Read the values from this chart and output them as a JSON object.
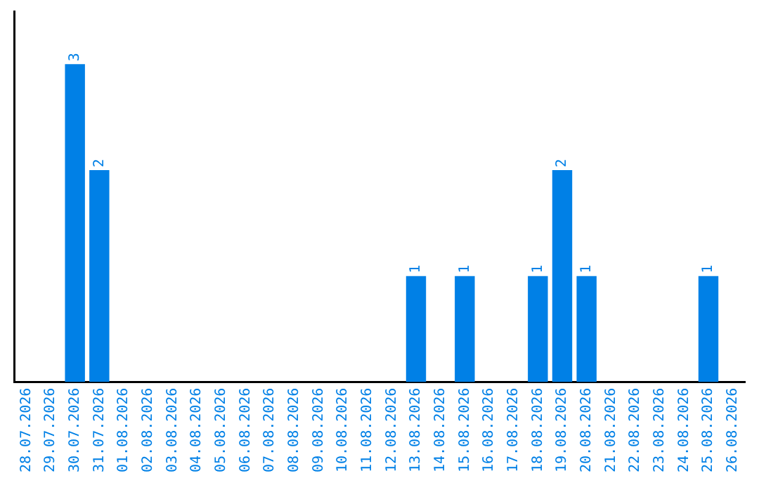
{
  "chart_data": {
    "type": "bar",
    "categories": [
      "28.07.2026",
      "29.07.2026",
      "30.07.2026",
      "31.07.2026",
      "01.08.2026",
      "02.08.2026",
      "03.08.2026",
      "04.08.2026",
      "05.08.2026",
      "06.08.2026",
      "07.08.2026",
      "08.08.2026",
      "09.08.2026",
      "10.08.2026",
      "11.08.2026",
      "12.08.2026",
      "13.08.2026",
      "14.08.2026",
      "15.08.2026",
      "16.08.2026",
      "17.08.2026",
      "18.08.2026",
      "19.08.2026",
      "20.08.2026",
      "21.08.2026",
      "22.08.2026",
      "23.08.2026",
      "24.08.2026",
      "25.08.2026",
      "26.08.2026"
    ],
    "values": [
      0,
      0,
      3,
      2,
      0,
      0,
      0,
      0,
      0,
      0,
      0,
      0,
      0,
      0,
      0,
      0,
      1,
      0,
      1,
      0,
      0,
      1,
      2,
      1,
      0,
      0,
      0,
      0,
      1,
      0
    ],
    "value_labels": [
      null,
      null,
      "3",
      "2",
      null,
      null,
      null,
      null,
      null,
      null,
      null,
      null,
      null,
      null,
      null,
      null,
      "1",
      null,
      "1",
      null,
      null,
      "1",
      "2",
      "1",
      null,
      null,
      null,
      null,
      "1",
      null
    ],
    "color": "#0080e6",
    "grid": false,
    "legend": false,
    "tick_labels": "x"
  }
}
